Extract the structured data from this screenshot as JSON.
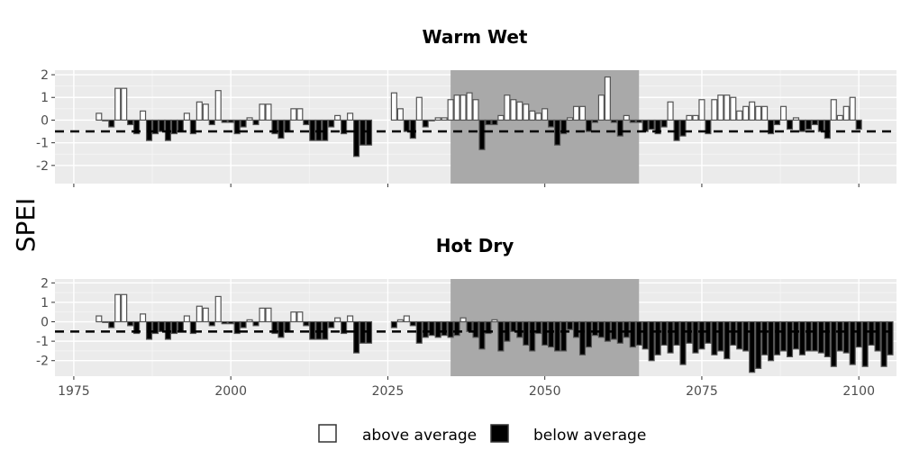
{
  "chart_data": {
    "type": "bar",
    "ylabel": "SPEI",
    "threshold": -0.5,
    "xlim": [
      1972,
      2106
    ],
    "ylim": [
      -2.8,
      2.2
    ],
    "x_ticks": [
      1975,
      2000,
      2025,
      2050,
      2075,
      2100
    ],
    "y_ticks": [
      2,
      1,
      0,
      -1,
      -2
    ],
    "highlight_range": [
      2035,
      2065
    ],
    "legend": [
      {
        "label": "above average",
        "fill": "#ffffff"
      },
      {
        "label": "below average",
        "fill": "#000000"
      }
    ],
    "panels": [
      {
        "title": "Warm Wet",
        "show_x_labels": false,
        "segments": [
          {
            "start_year": 1979,
            "values": [
              0.3,
              0.0,
              -0.3,
              1.4,
              1.4,
              -0.2,
              -0.6,
              0.4,
              -0.9,
              -0.6,
              -0.5,
              -0.9,
              -0.6,
              -0.5,
              0.3,
              -0.6,
              0.8,
              0.7,
              -0.2,
              1.3,
              -0.1,
              -0.1,
              -0.6,
              -0.3,
              0.1,
              -0.2,
              0.7,
              0.7,
              -0.6,
              -0.8,
              -0.5,
              0.5,
              0.5,
              -0.2,
              -0.9,
              -0.9,
              -0.9,
              -0.3,
              0.2,
              -0.6,
              0.3,
              -1.6,
              -1.1,
              -1.1
            ]
          },
          {
            "start_year": 2026,
            "values": [
              1.2,
              0.5,
              -0.5,
              -0.8,
              1.0,
              -0.3,
              0.0,
              0.1,
              0.1,
              0.9,
              1.1,
              1.1,
              1.2,
              0.9,
              -1.3,
              -0.2,
              -0.2,
              0.2,
              1.1,
              0.9,
              0.8,
              0.7,
              0.4,
              0.3,
              0.5,
              -0.3,
              -1.1,
              -0.6,
              0.1,
              0.6,
              0.6,
              -0.5,
              -0.1,
              1.1,
              1.9,
              -0.1,
              -0.7,
              0.2,
              -0.1,
              -0.1,
              -0.5,
              -0.4,
              -0.6,
              -0.3,
              0.8,
              -0.9,
              -0.7,
              0.2,
              0.2,
              0.9,
              -0.6,
              0.9,
              1.1,
              1.1,
              1.0,
              0.4,
              0.6,
              0.8,
              0.6,
              0.6,
              -0.6,
              -0.2,
              0.6,
              -0.4,
              0.1,
              -0.5,
              -0.4,
              -0.2,
              -0.5,
              -0.8,
              0.9,
              0.2,
              0.6,
              1.0,
              -0.4
            ]
          }
        ]
      },
      {
        "title": "Hot Dry",
        "show_x_labels": true,
        "segments": [
          {
            "start_year": 1979,
            "values": [
              0.3,
              0.0,
              -0.3,
              1.4,
              1.4,
              -0.2,
              -0.6,
              0.4,
              -0.9,
              -0.6,
              -0.5,
              -0.9,
              -0.6,
              -0.5,
              0.3,
              -0.6,
              0.8,
              0.7,
              -0.2,
              1.3,
              -0.1,
              -0.1,
              -0.6,
              -0.3,
              0.1,
              -0.2,
              0.7,
              0.7,
              -0.6,
              -0.8,
              -0.5,
              0.5,
              0.5,
              -0.2,
              -0.9,
              -0.9,
              -0.9,
              -0.3,
              0.2,
              -0.6,
              0.3,
              -1.6,
              -1.1,
              -1.1
            ]
          },
          {
            "start_year": 2026,
            "values": [
              -0.3,
              0.1,
              0.3,
              -0.2,
              -1.1,
              -0.8,
              -0.7,
              -0.8,
              -0.7,
              -0.8,
              -0.7,
              0.2,
              -0.5,
              -0.8,
              -1.4,
              -0.6,
              0.1,
              -1.5,
              -1.0,
              -0.5,
              -0.8,
              -1.2,
              -1.5,
              -0.6,
              -1.2,
              -1.3,
              -1.5,
              -1.5,
              -0.4,
              -0.8,
              -1.7,
              -1.3,
              -0.7,
              -0.8,
              -1.0,
              -0.9,
              -1.1,
              -0.8,
              -1.3,
              -1.2,
              -1.4,
              -2.0,
              -1.7,
              -1.2,
              -1.6,
              -1.2,
              -2.2,
              -1.1,
              -1.6,
              -1.4,
              -1.1,
              -1.7,
              -1.5,
              -1.9,
              -1.2,
              -1.4,
              -1.5,
              -2.6,
              -2.4,
              -1.7,
              -2.0,
              -1.7,
              -1.5,
              -1.8,
              -1.4,
              -1.7,
              -1.5,
              -1.5,
              -1.6,
              -1.8,
              -2.3,
              -1.5,
              -1.6,
              -2.2,
              -1.3,
              -2.3,
              -1.2,
              -1.5,
              -2.3,
              -1.7
            ]
          }
        ]
      }
    ]
  }
}
